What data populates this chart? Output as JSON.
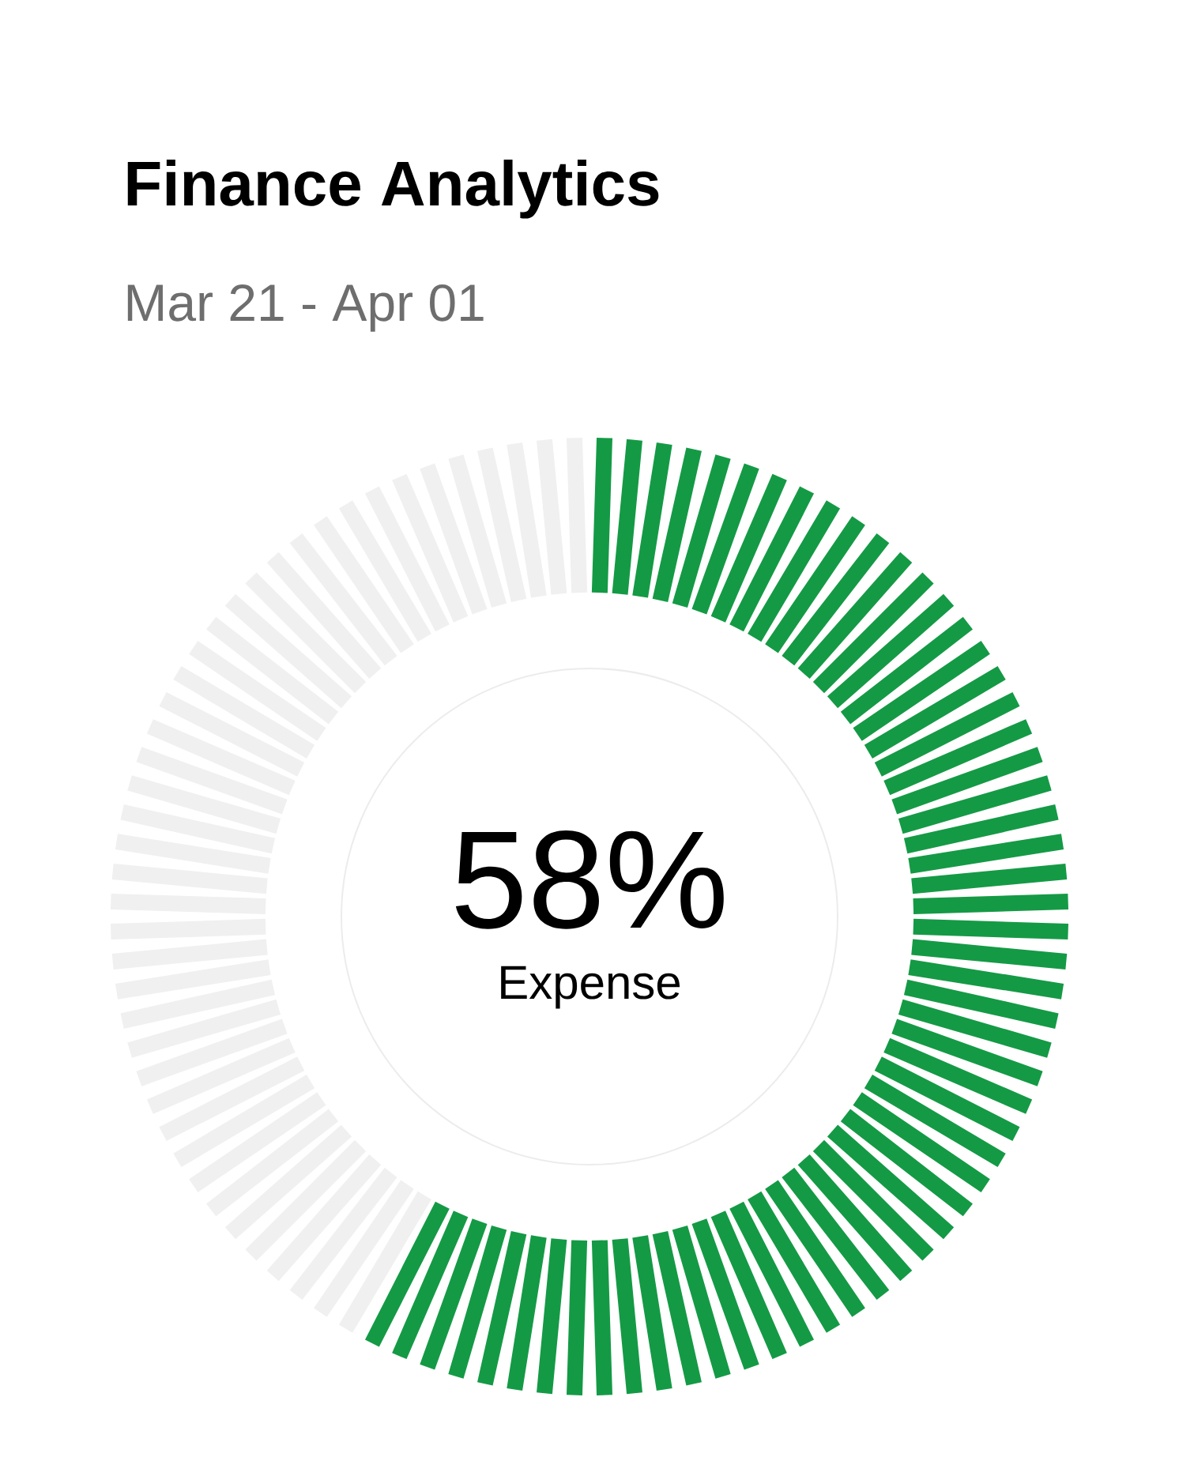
{
  "chart_data": {
    "type": "donut",
    "title": "Finance Analytics",
    "subtitle": "Mar 21 - Apr 01",
    "categories": [
      "Expense",
      null
    ],
    "values": [
      58,
      42
    ],
    "colors": [
      "#149a45",
      "#f0f0f0"
    ],
    "value_labels": [
      "58%",
      null
    ]
  }
}
